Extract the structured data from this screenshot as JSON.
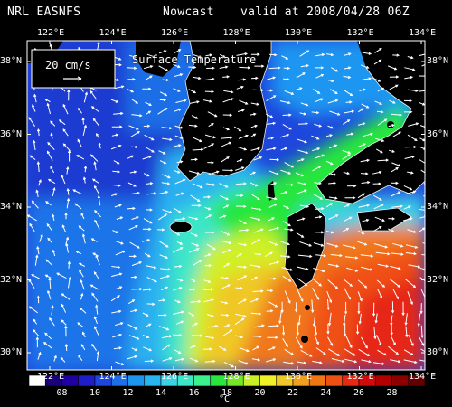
{
  "header": {
    "model": "NRL EASNFS",
    "type": "Nowcast",
    "valid": "valid at 2008/04/28 06Z"
  },
  "field_label": "Surface Temperature",
  "vector_scale": {
    "label": "20 cm/s"
  },
  "lon_labels": [
    "122°E",
    "124°E",
    "126°E",
    "128°E",
    "130°E",
    "132°E",
    "134°E"
  ],
  "lat_labels": [
    "38°N",
    "36°N",
    "34°N",
    "32°N",
    "30°N"
  ],
  "colorbar": {
    "unit": "°C",
    "tick_labels": [
      "08",
      "10",
      "12",
      "14",
      "16",
      "18",
      "20",
      "22",
      "24",
      "26",
      "28"
    ],
    "colors": [
      "#ffffff",
      "#1a0078",
      "#1f00a0",
      "#1e1ec8",
      "#1e46dc",
      "#1e6ee6",
      "#1e96f0",
      "#28b4f0",
      "#3cd2e6",
      "#3ce6c8",
      "#3cf08c",
      "#28e63c",
      "#78e628",
      "#c8f028",
      "#f0f028",
      "#f0c828",
      "#f0a01e",
      "#f07814",
      "#f05014",
      "#e62814",
      "#d20a0a",
      "#b40000",
      "#8c0000",
      "#640000"
    ]
  },
  "colors": {
    "background": "#000000",
    "land": "#000000",
    "vectors": "#ffffff"
  }
}
